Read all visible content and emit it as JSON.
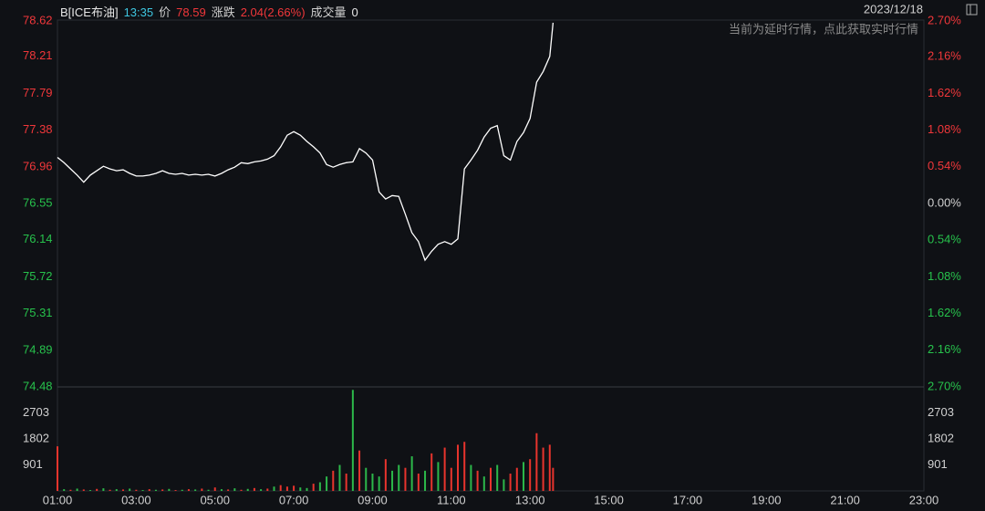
{
  "header": {
    "name": "B[ICE布油]",
    "time": "13:35",
    "price_label": "价",
    "price": "78.59",
    "change_label": "涨跌",
    "change": "2.04(2.66%)",
    "volume_label": "成交量",
    "volume": "0",
    "date": "2023/12/18",
    "notice": "当前为延时行情，点此获取实时行情"
  },
  "chart_data": {
    "type": "line",
    "x": [
      "01:00",
      "01:10",
      "01:20",
      "01:30",
      "01:40",
      "01:50",
      "02:00",
      "02:10",
      "02:20",
      "02:30",
      "02:40",
      "02:50",
      "03:00",
      "03:10",
      "03:20",
      "03:30",
      "03:40",
      "03:50",
      "04:00",
      "04:10",
      "04:20",
      "04:30",
      "04:40",
      "04:50",
      "05:00",
      "05:10",
      "05:20",
      "05:30",
      "05:40",
      "05:50",
      "06:00",
      "06:10",
      "06:20",
      "06:30",
      "06:40",
      "06:50",
      "07:00",
      "07:10",
      "07:20",
      "07:30",
      "07:40",
      "07:50",
      "08:00",
      "08:10",
      "08:20",
      "08:30",
      "08:40",
      "08:50",
      "09:00",
      "09:10",
      "09:20",
      "09:30",
      "09:40",
      "09:50",
      "10:00",
      "10:10",
      "10:20",
      "10:30",
      "10:40",
      "10:50",
      "11:00",
      "11:10",
      "11:20",
      "11:30",
      "11:40",
      "11:50",
      "12:00",
      "12:10",
      "12:20",
      "12:30",
      "12:40",
      "12:50",
      "13:00",
      "13:10",
      "13:20",
      "13:30",
      "13:35"
    ],
    "series": [
      {
        "color": "#ffffff",
        "values": [
          77.07,
          77.01,
          76.94,
          76.87,
          76.79,
          76.87,
          76.92,
          76.97,
          76.94,
          76.92,
          76.93,
          76.89,
          76.86,
          76.86,
          76.87,
          76.89,
          76.92,
          76.89,
          76.88,
          76.89,
          76.87,
          76.88,
          76.87,
          76.88,
          76.86,
          76.89,
          76.93,
          76.96,
          77.01,
          77.0,
          77.02,
          77.03,
          77.05,
          77.09,
          77.19,
          77.32,
          77.36,
          77.32,
          77.25,
          77.19,
          77.12,
          76.99,
          76.96,
          76.99,
          77.01,
          77.02,
          77.17,
          77.12,
          77.04,
          76.68,
          76.6,
          76.64,
          76.63,
          76.43,
          76.22,
          76.12,
          75.91,
          76.01,
          76.09,
          76.12,
          76.09,
          76.15,
          76.94,
          77.04,
          77.15,
          77.3,
          77.4,
          77.43,
          77.09,
          77.04,
          77.25,
          77.35,
          77.51,
          77.92,
          78.04,
          78.21,
          78.59
        ]
      },
      {
        "axis": "volume",
        "values": [
          1545,
          60,
          40,
          80,
          50,
          30,
          70,
          90,
          40,
          60,
          50,
          80,
          40,
          30,
          60,
          40,
          50,
          70,
          30,
          40,
          60,
          50,
          80,
          40,
          120,
          60,
          50,
          90,
          40,
          70,
          100,
          60,
          80,
          150,
          200,
          150,
          180,
          120,
          100,
          250,
          300,
          500,
          700,
          900,
          600,
          3500,
          1400,
          800,
          600,
          500,
          1100,
          700,
          900,
          800,
          1200,
          600,
          700,
          1300,
          1000,
          1500,
          800,
          1600,
          1700,
          900,
          700,
          500,
          800,
          900,
          400,
          600,
          800,
          1000,
          1100,
          2000,
          1500,
          1600,
          800
        ],
        "colors": [
          "#e8342d",
          "#2cb84a",
          "#e8342d",
          "#2cb84a",
          "#e8342d",
          "#2cb84a",
          "#e8342d",
          "#2cb84a",
          "#e8342d",
          "#2cb84a",
          "#e8342d",
          "#2cb84a",
          "#e8342d",
          "#2cb84a",
          "#e8342d",
          "#2cb84a",
          "#e8342d",
          "#2cb84a",
          "#e8342d",
          "#2cb84a",
          "#e8342d",
          "#2cb84a",
          "#e8342d",
          "#2cb84a",
          "#e8342d",
          "#2cb84a",
          "#e8342d",
          "#2cb84a",
          "#e8342d",
          "#2cb84a",
          "#e8342d",
          "#2cb84a",
          "#e8342d",
          "#2cb84a",
          "#e8342d",
          "#e8342d",
          "#e8342d",
          "#2cb84a",
          "#2cb84a",
          "#e8342d",
          "#2cb84a",
          "#2cb84a",
          "#e8342d",
          "#2cb84a",
          "#e8342d",
          "#2cb84a",
          "#e8342d",
          "#2cb84a",
          "#2cb84a",
          "#2cb84a",
          "#e8342d",
          "#2cb84a",
          "#2cb84a",
          "#e8342d",
          "#2cb84a",
          "#e8342d",
          "#2cb84a",
          "#e8342d",
          "#2cb84a",
          "#e8342d",
          "#e8342d",
          "#e8342d",
          "#e8342d",
          "#2cb84a",
          "#e8342d",
          "#2cb84a",
          "#e8342d",
          "#2cb84a",
          "#2cb84a",
          "#e8342d",
          "#e8342d",
          "#2cb84a",
          "#e8342d",
          "#e8342d",
          "#e8342d",
          "#e8342d",
          "#e8342d"
        ]
      }
    ],
    "xlim": [
      "01:00",
      "23:00"
    ],
    "xticks": [
      "01:00",
      "03:00",
      "05:00",
      "07:00",
      "09:00",
      "11:00",
      "13:00",
      "15:00",
      "17:00",
      "19:00",
      "21:00",
      "23:00"
    ],
    "ylim": [
      74.48,
      78.62
    ],
    "yticks": [
      78.62,
      78.21,
      77.79,
      77.38,
      76.96,
      76.55,
      76.14,
      75.72,
      75.31,
      74.89,
      74.48
    ],
    "y2lim": [
      -2.7,
      2.7
    ],
    "y2ticks": [
      {
        "value": 2.7,
        "label": "2.70%"
      },
      {
        "value": 2.16,
        "label": "2.16%"
      },
      {
        "value": 1.62,
        "label": "1.62%"
      },
      {
        "value": 1.08,
        "label": "1.08%"
      },
      {
        "value": 0.54,
        "label": "0.54%"
      },
      {
        "value": 0,
        "label": "0.00%"
      },
      {
        "value": -0.54,
        "label": "0.54%"
      },
      {
        "value": -1.08,
        "label": "1.08%"
      },
      {
        "value": -1.62,
        "label": "1.62%"
      },
      {
        "value": -2.16,
        "label": "2.16%"
      },
      {
        "value": -2.7,
        "label": "2.70%"
      }
    ],
    "volume_lim": [
      0,
      3604
    ],
    "volume_ticks": [
      2703,
      1802,
      901
    ]
  }
}
